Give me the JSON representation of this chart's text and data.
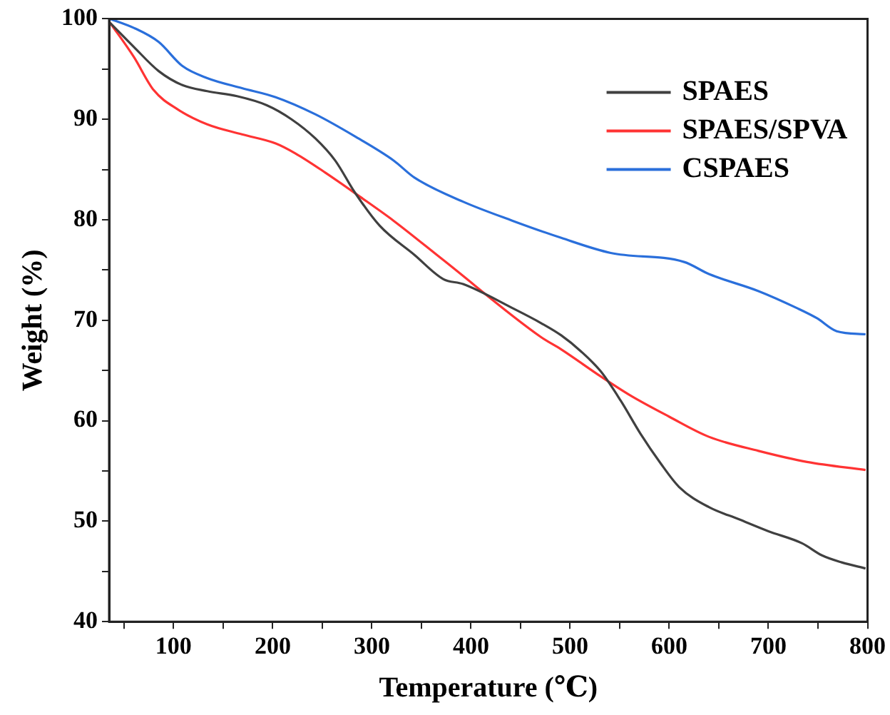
{
  "chart_data": {
    "type": "line",
    "xlabel": "Temperature (℃)",
    "ylabel": "Weight (%)",
    "xlim": [
      35,
      800
    ],
    "ylim": [
      40,
      100
    ],
    "xticks": [
      {
        "value": 50,
        "label": null
      },
      100,
      {
        "value": 150,
        "label": null
      },
      200,
      {
        "value": 250,
        "label": null
      },
      300,
      {
        "value": 350,
        "label": null
      },
      400,
      {
        "value": 450,
        "label": null
      },
      500,
      {
        "value": 550,
        "label": null
      },
      600,
      {
        "value": 650,
        "label": null
      },
      700,
      {
        "value": 750,
        "label": null
      },
      800
    ],
    "yticks": [
      40,
      {
        "value": 45,
        "label": null
      },
      50,
      {
        "value": 55,
        "label": null
      },
      60,
      {
        "value": 65,
        "label": null
      },
      70,
      {
        "value": 75,
        "label": null
      },
      80,
      {
        "value": 85,
        "label": null
      },
      90,
      {
        "value": 95,
        "label": null
      },
      100
    ],
    "grid": false,
    "legend": "top right",
    "marker": "none",
    "line_style": "solid",
    "series": [
      {
        "name": "SPAES",
        "color": "#404040",
        "x": [
          36,
          60,
          85,
          109,
          134,
          164,
          194,
          219,
          243,
          263,
          283,
          308,
          343,
          372,
          392,
          442,
          471,
          491,
          511,
          531,
          551,
          571,
          591,
          610,
          640,
          670,
          700,
          734,
          754,
          774,
          798
        ],
        "values": [
          99.6,
          97.2,
          94.8,
          93.4,
          92.8,
          92.3,
          91.4,
          90,
          88.1,
          85.9,
          82.7,
          79.4,
          76.5,
          74.1,
          73.6,
          71.2,
          69.7,
          68.5,
          66.9,
          64.9,
          62,
          58.7,
          55.8,
          53.4,
          51.4,
          50.2,
          49,
          47.8,
          46.6,
          45.9,
          45.3
        ]
      },
      {
        "name": "SPAES/SPVA",
        "color": "#ff3333",
        "x": [
          36,
          60,
          80,
          104,
          134,
          169,
          203,
          223,
          253,
          288,
          322,
          372,
          471,
          491,
          531,
          561,
          600,
          640,
          690,
          739,
          798
        ],
        "values": [
          99.6,
          96.2,
          92.9,
          91,
          89.5,
          88.5,
          87.6,
          86.6,
          84.7,
          82.3,
          79.9,
          76,
          68.3,
          67.1,
          64.4,
          62.5,
          60.4,
          58.4,
          57,
          55.9,
          55.1
        ]
      },
      {
        "name": "CSPAES",
        "color": "#2a6fdb",
        "x": [
          36,
          60,
          85,
          109,
          134,
          169,
          203,
          243,
          283,
          322,
          343,
          392,
          442,
          491,
          541,
          615,
          640,
          690,
          729,
          749,
          769,
          798
        ],
        "values": [
          100,
          99.1,
          97.7,
          95.3,
          94.1,
          93.1,
          92.2,
          90.5,
          88.3,
          85.9,
          84.2,
          81.8,
          79.9,
          78.2,
          76.7,
          75.8,
          74.6,
          72.9,
          71.2,
          70.2,
          68.9,
          68.6
        ]
      }
    ]
  }
}
